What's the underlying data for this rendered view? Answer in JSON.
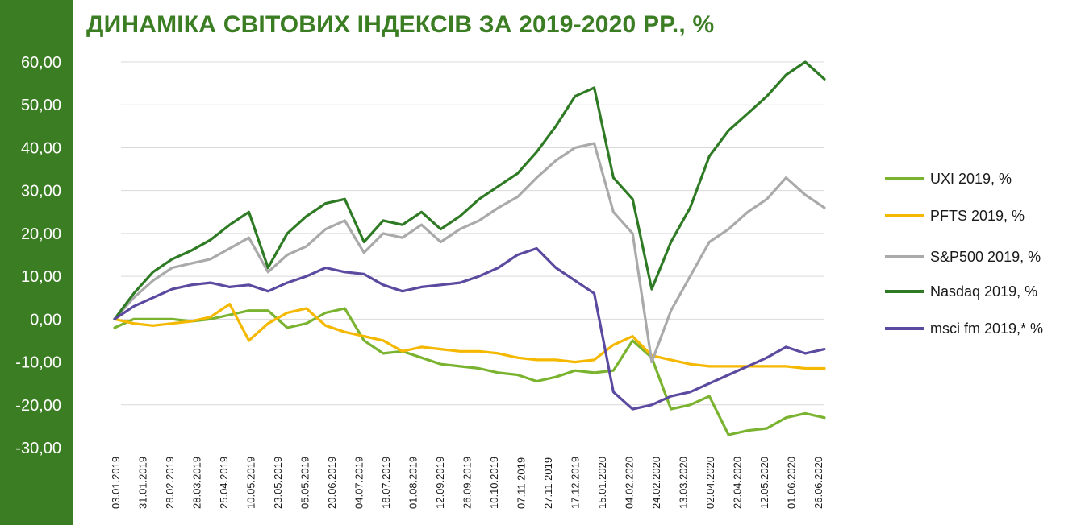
{
  "chart_data": {
    "type": "line",
    "title": "ДИНАМІКА СВІТОВИХ ІНДЕКСІВ ЗА 2019-2020 РР., %",
    "xlabel": "",
    "ylabel": "",
    "ylim": [
      -30,
      60
    ],
    "yticks": [
      -30,
      -20,
      -10,
      0,
      10,
      20,
      30,
      40,
      50,
      60
    ],
    "ytick_labels": [
      "-30,00",
      "-20,00",
      "-10,00",
      "0,00",
      "10,00",
      "20,00",
      "30,00",
      "40,00",
      "50,00",
      "60,00"
    ],
    "x_tick_labels": [
      "03.01.2019",
      "31.01.2019",
      "28.02.2019",
      "28.03.2019",
      "25.04.2019",
      "10.05.2019",
      "23.05.2019",
      "05.05.2019",
      "20.06.2019",
      "04.07.2019",
      "18.07.2019",
      "01.08.2019",
      "12.09.2019",
      "26.09.2019",
      "10.10.2019",
      "07.11.2019",
      "27.11.2019",
      "17.12.2019",
      "15.01.2020",
      "04.02.2020",
      "24.02.2020",
      "13.03.2020",
      "02.04.2020",
      "22.04.2020",
      "12.05.2020",
      "01.06.2020",
      "26.06.2020"
    ],
    "grid": "horizontal",
    "legend_position": "right",
    "series": [
      {
        "name": "UXI 2019, %",
        "color": "#7ab32f",
        "values": [
          -2.0,
          0.0,
          0.0,
          0.0,
          -0.5,
          0.0,
          1.0,
          2.0,
          2.0,
          -2.0,
          -1.0,
          1.5,
          2.5,
          -5.0,
          -8.0,
          -7.5,
          -9.0,
          -10.5,
          -11.0,
          -11.5,
          -12.5,
          -13.0,
          -14.5,
          -13.5,
          -12.0,
          -12.5,
          -12.0,
          -5.0,
          -9.0,
          -21.0,
          -20.0,
          -18.0,
          -27.0,
          -26.0,
          -25.5,
          -23.0,
          -22.0,
          -23.0
        ]
      },
      {
        "name": "PFTS 2019, %",
        "color": "#f5b800",
        "values": [
          0.0,
          -1.0,
          -1.5,
          -1.0,
          -0.5,
          0.5,
          3.5,
          -5.0,
          -1.0,
          1.5,
          2.5,
          -1.5,
          -3.0,
          -4.0,
          -5.0,
          -7.5,
          -6.5,
          -7.0,
          -7.5,
          -7.5,
          -8.0,
          -9.0,
          -9.5,
          -9.5,
          -10.0,
          -9.5,
          -6.0,
          -4.0,
          -8.5,
          -9.5,
          -10.5,
          -11.0,
          -11.0,
          -11.0,
          -11.0,
          -11.0,
          -11.5,
          -11.5
        ]
      },
      {
        "name": "S&P500 2019, %",
        "color": "#aaaaaa",
        "values": [
          0.0,
          5.0,
          9.0,
          12.0,
          13.0,
          14.0,
          16.5,
          19.0,
          11.0,
          15.0,
          17.0,
          21.0,
          23.0,
          15.5,
          20.0,
          19.0,
          22.0,
          18.0,
          21.0,
          23.0,
          26.0,
          28.5,
          33.0,
          37.0,
          40.0,
          41.0,
          25.0,
          20.0,
          -10.0,
          2.0,
          10.0,
          18.0,
          21.0,
          25.0,
          28.0,
          33.0,
          29.0,
          26.0
        ]
      },
      {
        "name": "Nasdaq 2019, %",
        "color": "#2f7a24",
        "values": [
          0.0,
          6.0,
          11.0,
          14.0,
          16.0,
          18.5,
          22.0,
          25.0,
          12.0,
          20.0,
          24.0,
          27.0,
          28.0,
          18.0,
          23.0,
          22.0,
          25.0,
          21.0,
          24.0,
          28.0,
          31.0,
          34.0,
          39.0,
          45.0,
          52.0,
          54.0,
          33.0,
          28.0,
          7.0,
          18.0,
          26.0,
          38.0,
          44.0,
          48.0,
          52.0,
          57.0,
          60.0,
          56.0
        ]
      },
      {
        "name": "msci fm 2019,* %",
        "color": "#5b4aa0",
        "values": [
          0.0,
          3.0,
          5.0,
          7.0,
          8.0,
          8.5,
          7.5,
          8.0,
          6.5,
          8.5,
          10.0,
          12.0,
          11.0,
          10.5,
          8.0,
          6.5,
          7.5,
          8.0,
          8.5,
          10.0,
          12.0,
          15.0,
          16.5,
          12.0,
          9.0,
          6.0,
          -17.0,
          -21.0,
          -20.0,
          -18.0,
          -17.0,
          -15.0,
          -13.0,
          -11.0,
          -9.0,
          -6.5,
          -8.0,
          -7.0
        ]
      }
    ]
  }
}
